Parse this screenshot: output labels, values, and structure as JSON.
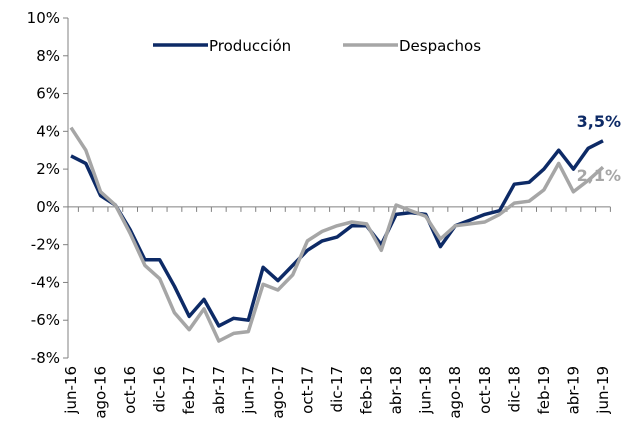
{
  "chart_data": {
    "type": "line",
    "categories": [
      "jun-16",
      null,
      "ago-16",
      null,
      "oct-16",
      null,
      "dic-16",
      null,
      "feb-17",
      null,
      "abr-17",
      null,
      "jun-17",
      null,
      "ago-17",
      null,
      "oct-17",
      null,
      "dic-17",
      null,
      "feb-18",
      null,
      "abr-18",
      null,
      "jun-18",
      null,
      "ago-18",
      null,
      "oct-18",
      null,
      "dic-18",
      null,
      "feb-19",
      null,
      "abr-19",
      null,
      "jun-19"
    ],
    "series": [
      {
        "name": "Producción",
        "color": "#0d2a66",
        "end_label": "3,5%",
        "values": [
          2.7,
          2.3,
          0.6,
          0.1,
          -1.2,
          -2.8,
          -2.8,
          -4.2,
          -5.8,
          -4.9,
          -6.3,
          -5.9,
          -6.0,
          -3.2,
          -3.9,
          -3.1,
          -2.3,
          -1.8,
          -1.6,
          -1.0,
          -1.0,
          -2.0,
          -0.4,
          -0.3,
          -0.4,
          -2.1,
          -1.0,
          -0.7,
          -0.4,
          -0.2,
          1.2,
          1.3,
          2.0,
          3.0,
          2.0,
          3.1,
          3.5
        ]
      },
      {
        "name": "Despachos",
        "color": "#a6a6a6",
        "end_label": "2,1%",
        "values": [
          4.2,
          3.0,
          0.8,
          0.1,
          -1.4,
          -3.1,
          -3.8,
          -5.6,
          -6.5,
          -5.4,
          -7.1,
          -6.7,
          -6.6,
          -4.1,
          -4.4,
          -3.6,
          -1.8,
          -1.3,
          -1.0,
          -0.8,
          -0.9,
          -2.3,
          0.1,
          -0.2,
          -0.5,
          -1.7,
          -1.0,
          -0.9,
          -0.8,
          -0.4,
          0.2,
          0.3,
          0.9,
          2.3,
          0.8,
          1.4,
          2.1
        ]
      }
    ],
    "ylim": [
      -8,
      10
    ],
    "yticks": [
      {
        "value": -8,
        "label": "-8%"
      },
      {
        "value": -6,
        "label": "-6%"
      },
      {
        "value": -4,
        "label": "-4%"
      },
      {
        "value": -2,
        "label": "-2%"
      },
      {
        "value": 0,
        "label": "0%"
      },
      {
        "value": 2,
        "label": "2%"
      },
      {
        "value": 4,
        "label": "4%"
      },
      {
        "value": 6,
        "label": "6%"
      },
      {
        "value": 8,
        "label": "8%"
      },
      {
        "value": 10,
        "label": "10%"
      }
    ],
    "legend": "top"
  }
}
